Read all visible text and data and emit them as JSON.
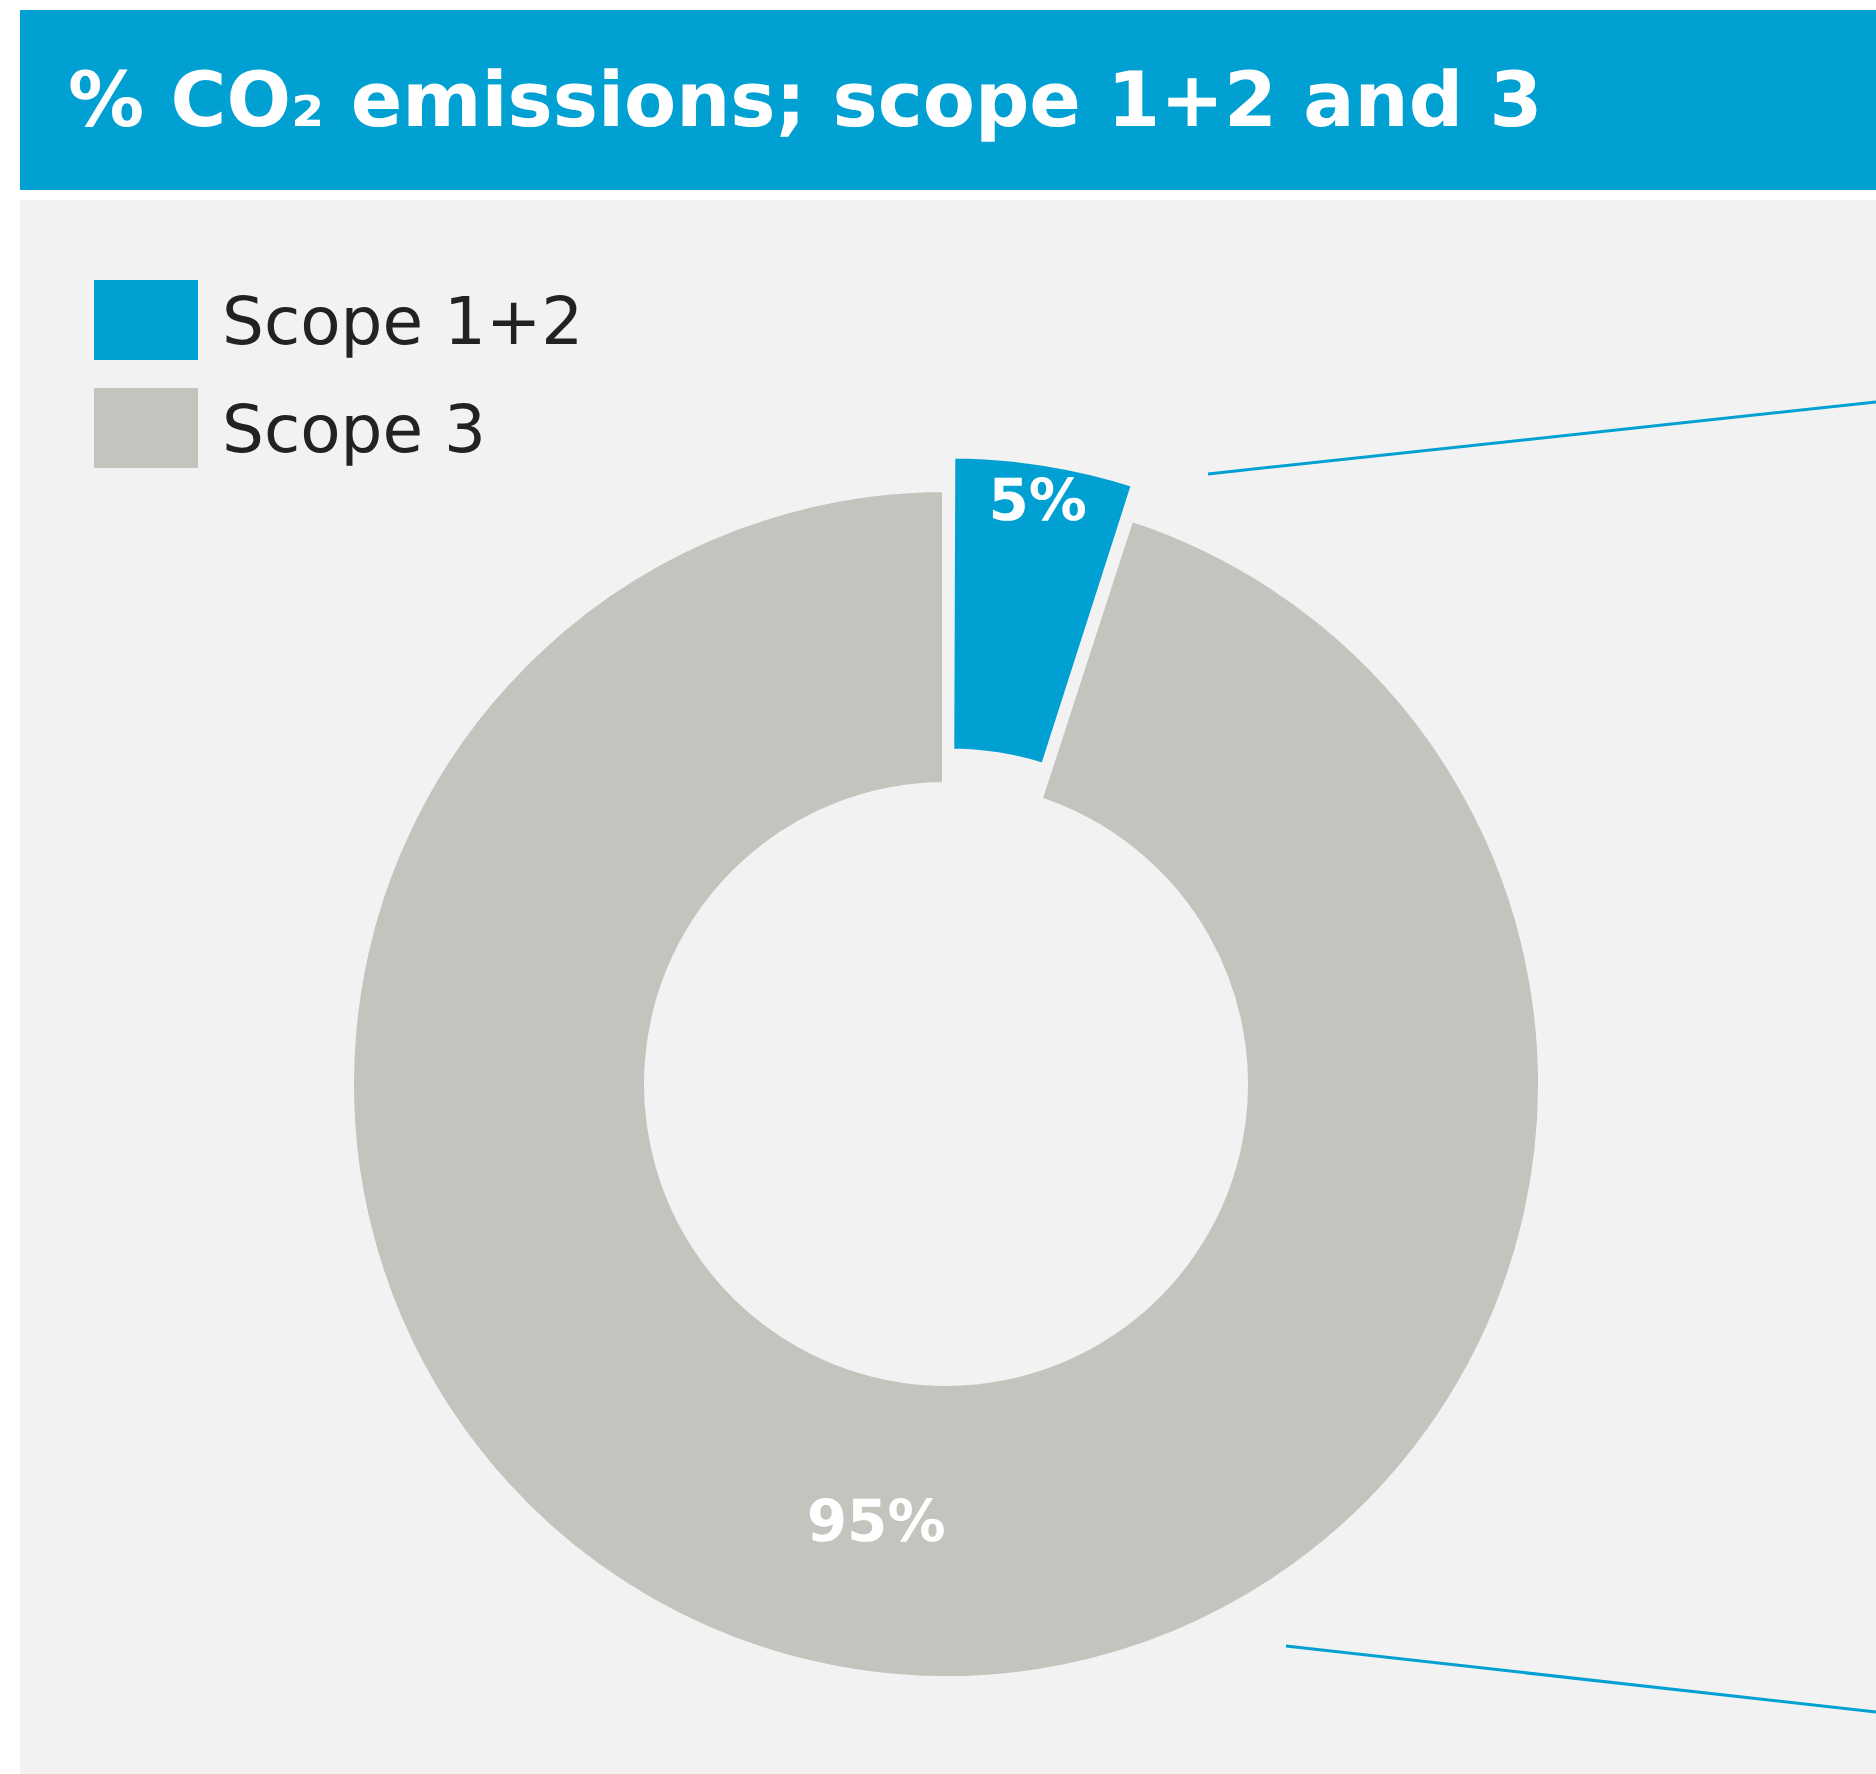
{
  "chart_data": {
    "type": "donut",
    "title": "% CO₂ emissions; scope 1+2 and 3",
    "categories": [
      "Scope 1+2",
      "Scope 3"
    ],
    "values": [
      5,
      95
    ],
    "colors": [
      "#00a0d2",
      "#c4c4be"
    ],
    "value_labels": [
      "5%",
      "95%"
    ],
    "legend": "top left"
  }
}
